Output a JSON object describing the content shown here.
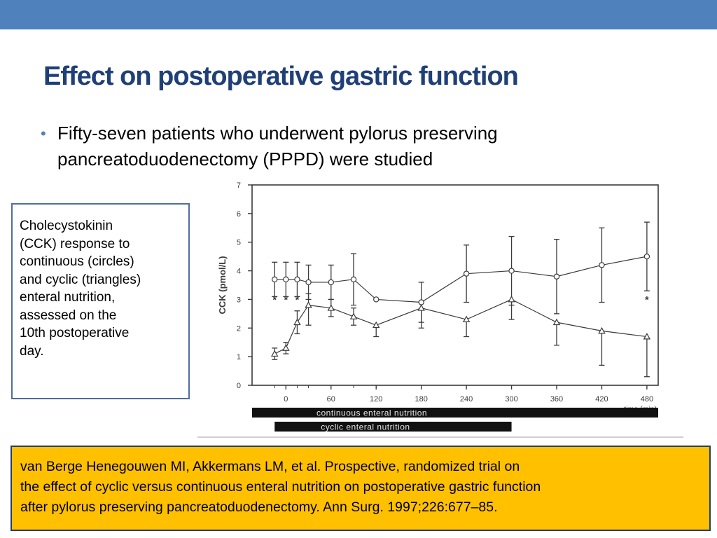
{
  "slide": {
    "title": "Effect on postoperative gastric function",
    "bullet_line1": "Fifty-seven patients who underwent pylorus preserving",
    "bullet_line2": "pancreatoduodenectomy (PPPD) were studied",
    "side_note_lines": [
      "Cholecystokinin",
      "(CCK) response to",
      "continuous (circles)",
      "and cyclic (triangles)",
      "enteral nutrition,",
      "assessed on the",
      "10th postoperative",
      "day."
    ],
    "reference_lines": [
      "van Berge Henegouwen MI, Akkermans LM, et al. Prospective, randomized trial on",
      "the effect of cyclic versus continuous enteral nutrition on postoperative gastric function",
      "after pylorus preserving pancreatoduodenectomy. Ann Surg. 1997;226:677–85."
    ],
    "colors": {
      "topbar": "#4f81bd",
      "title": "#1f3f77",
      "reference_bg": "#ffc000"
    }
  },
  "chart_data": {
    "type": "line",
    "ylabel": "CCK (pmol/L)",
    "xlabel": "time (min)",
    "ylim": [
      0,
      7
    ],
    "xlim": [
      -45,
      495
    ],
    "xticks": [
      0,
      60,
      120,
      180,
      240,
      300,
      360,
      420,
      480
    ],
    "yticks": [
      0,
      1,
      2,
      3,
      4,
      5,
      6,
      7
    ],
    "series": [
      {
        "marker": "circle",
        "x": [
          -15,
          0,
          15,
          30,
          60,
          90,
          120,
          180,
          240,
          300,
          360,
          420,
          480
        ],
        "y": [
          3.7,
          3.7,
          3.7,
          3.6,
          3.6,
          3.7,
          3.0,
          2.9,
          3.9,
          4.0,
          3.8,
          4.2,
          4.5
        ],
        "err_hi": [
          0.6,
          0.6,
          0.6,
          0.6,
          0.6,
          0.9,
          0.0,
          0.7,
          1.0,
          1.2,
          1.3,
          1.3,
          1.2
        ],
        "err_lo": [
          0.6,
          0.6,
          0.6,
          0.6,
          0.6,
          0.9,
          0.0,
          0.7,
          1.0,
          1.2,
          1.3,
          1.3,
          1.2
        ]
      },
      {
        "marker": "triangle",
        "x": [
          -15,
          0,
          15,
          30,
          60,
          90,
          120,
          180,
          240,
          300,
          360,
          420,
          480
        ],
        "y": [
          1.1,
          1.3,
          2.2,
          2.8,
          2.7,
          2.4,
          2.1,
          2.7,
          2.3,
          3.0,
          2.2,
          1.9,
          1.7
        ],
        "err_hi": [
          0.2,
          0.2,
          0.4,
          0.4,
          0.3,
          0.3,
          0.0,
          0.0,
          0.0,
          0.0,
          0.0,
          0.0,
          0.0
        ],
        "err_lo": [
          0.2,
          0.2,
          0.4,
          0.7,
          0.3,
          0.3,
          0.4,
          0.7,
          0.6,
          0.7,
          0.8,
          1.2,
          1.4
        ]
      }
    ],
    "significance_marks": [
      {
        "x": -15,
        "y": 3.0,
        "label": "*"
      },
      {
        "x": 0,
        "y": 3.0,
        "label": "*"
      },
      {
        "x": 15,
        "y": 3.0,
        "label": "*"
      },
      {
        "x": 480,
        "y": 3.0,
        "label": "*"
      }
    ],
    "bars": [
      {
        "label": "continuous enteral nutrition",
        "x_start": -45,
        "x_end": 495
      },
      {
        "label": "cyclic enteral nutrition",
        "x_start": -15,
        "x_end": 300
      }
    ]
  }
}
